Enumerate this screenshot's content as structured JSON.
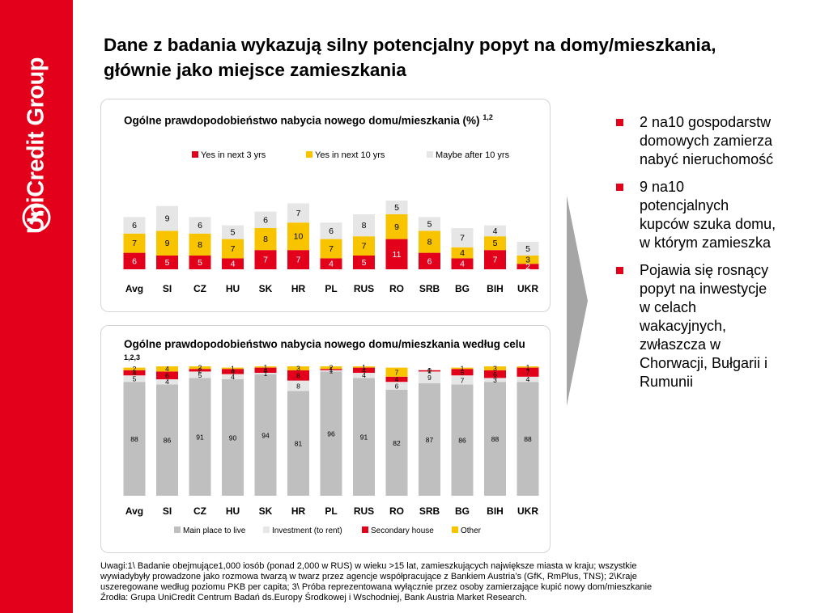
{
  "brand": {
    "name": "UniCredit Group",
    "color": "#e2001a"
  },
  "title": "Dane z badania wykazują silny potencjalny popyt na domy/mieszkania, głównie jako miejsce zamieszkania",
  "colors": {
    "red": "#e2001a",
    "yellow": "#f8c400",
    "light_gray": "#e6e6e6",
    "mid_gray": "#bfbfbf",
    "outline": "#d4d4d4",
    "arrow": "#a6a6a6"
  },
  "chart_data": [
    {
      "type": "bar",
      "stacked": true,
      "title": "Ogólne prawdopodobieństwo nabycia nowego domu/mieszkania (%)",
      "title_sup": "1,2",
      "categories": [
        "Avg",
        "SI",
        "CZ",
        "HU",
        "SK",
        "HR",
        "PL",
        "RUS",
        "RO",
        "SRB",
        "BG",
        "BIH",
        "UKR"
      ],
      "series": [
        {
          "name": "Yes in next 3 yrs",
          "color": "#e2001a",
          "values": [
            6,
            5,
            5,
            4,
            7,
            7,
            4,
            5,
            11,
            6,
            4,
            7,
            2
          ]
        },
        {
          "name": "Yes in next 10 yrs",
          "color": "#f8c400",
          "values": [
            7,
            9,
            8,
            7,
            8,
            10,
            7,
            7,
            9,
            8,
            4,
            5,
            3
          ]
        },
        {
          "name": "Maybe after 10 yrs",
          "color": "#e6e6e6",
          "values": [
            6,
            9,
            6,
            5,
            6,
            7,
            6,
            8,
            5,
            5,
            7,
            4,
            5
          ]
        }
      ],
      "legend": "top"
    },
    {
      "type": "bar",
      "stacked": true,
      "title": "Ogólne prawdopodobieństwo nabycia nowego domu/mieszkania według celu",
      "title_sup": "1,2,3",
      "categories": [
        "Avg",
        "SI",
        "CZ",
        "HU",
        "SK",
        "HR",
        "PL",
        "RUS",
        "RO",
        "SRB",
        "BG",
        "BIH",
        "UKR"
      ],
      "series": [
        {
          "name": "Main place to live",
          "color": "#bfbfbf",
          "values": [
            88,
            86,
            91,
            90,
            94,
            81,
            96,
            91,
            82,
            87,
            86,
            88,
            88
          ]
        },
        {
          "name": "Investment (to rent)",
          "color": "#e6e6e6",
          "values": [
            5,
            4,
            5,
            4,
            1,
            8,
            1,
            4,
            6,
            9,
            7,
            3,
            4
          ]
        },
        {
          "name": "Secondary house",
          "color": "#e2001a",
          "values": [
            4,
            6,
            2,
            4,
            4,
            8,
            1,
            4,
            4,
            1,
            5,
            6,
            7
          ]
        },
        {
          "name": "Other",
          "color": "#f8c400",
          "values": [
            2,
            4,
            2,
            1,
            1,
            3,
            2,
            1,
            7,
            0,
            1,
            3,
            1
          ]
        }
      ],
      "legend": "bottom"
    }
  ],
  "bullets": [
    "2 na10 gospodarstw domowych zamierza nabyć nieruchomość",
    "9 na10 potencjalnych kupców szuka domu, w którym zamieszka",
    "Pojawia się rosnący popyt na inwestycje w celach wakacyjnych, zwłaszcza w Chorwacji, Bułgarii i Rumunii"
  ],
  "notes": {
    "line1": "Uwagi:1\\ Badanie obejmujące1,000 iosób (ponad 2,000 w RUS) w wieku >15 lat, zamieszkujących największe miasta w kraju; wszystkie",
    "line2": "wywiadybyły prowadzone jako rozmowa twarzą w twarz przez agencje współpracujące z Bankiem Austria’s (GfK, RmPlus, TNS); 2\\Kraje",
    "line3": "uszeregowane według poziomu PKB per capita; 3\\ Próba reprezentowana wyłącznie przez osoby zamierzające kupić nowy dom/mieszkanie",
    "line4": "Źrodła: Grupa UniCredit Centrum Badań ds.Europy Środkowej i Wschodniej, Bank Austria Market Research."
  }
}
